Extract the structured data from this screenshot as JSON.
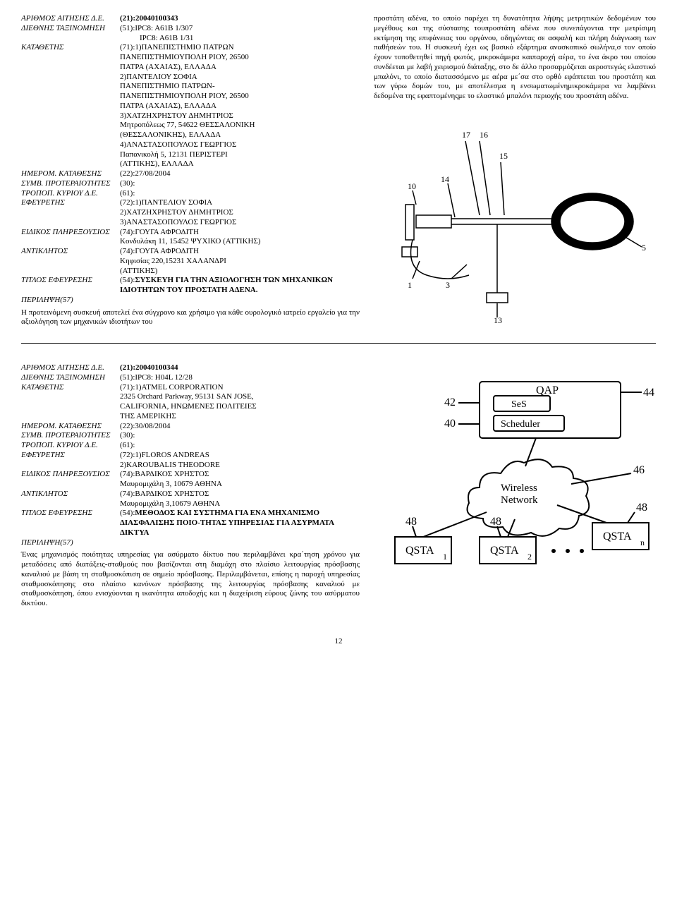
{
  "records": [
    {
      "fields": [
        {
          "label": "ΑΡΙΘΜΟΣ ΑΙΤΗΣΗΣ Δ.Ε.",
          "value_bold": "(21):20040100343"
        },
        {
          "label": "ΔΙΕΘΝΗΣ ΤΑΞΙΝΟΜΗΣΗ",
          "lines": [
            "(51):IPC8: A61B   1/307",
            "IPC8: A61B   1/31"
          ],
          "indent_from": 1
        },
        {
          "label": "ΚΑΤΑΘΕΤΗΣ",
          "lines": [
            "(71):1)ΠΑΝΕΠΙΣΤΗΜΙΟ ΠΑΤΡΩΝ",
            "ΠΑΝΕΠΙΣΤΗΜΙΟΥΠΟΛΗ ΡΙΟΥ, 26500",
            "ΠΑΤΡΑ (ΑΧΑΙΑΣ), ΕΛΛΑΔΑ",
            "2)ΠΑΝΤΕΛΙΟΥ ΣΟΦΙΑ",
            "ΠΑΝΕΠΙΣΤΗΜΙΟ ΠΑΤΡΩΝ-",
            "ΠΑΝΕΠΙΣΤΗΜΙΟΥΠΟΛΗ ΡΙΟΥ, 26500",
            "ΠΑΤΡΑ (ΑΧΑΙΑΣ), ΕΛΛΑΔΑ",
            "3)ΧΑΤΖΗΧΡΗΣΤΟΥ ΔΗΜΗΤΡΙΟΣ",
            "Μητροπόλεως 77, 54622 ΘΕΣΣΑΛΟΝΙΚΗ",
            "(ΘΕΣΣΑΛΟΝΙΚΗΣ), ΕΛΛΑΔΑ",
            "4)ΑΝΑΣΤΑΣΟΠΟΥΛΟΣ ΓΕΩΡΓΙΟΣ",
            "Παπανικολή 5, 12131 ΠΕΡΙΣΤΕΡΙ",
            "(ΑΤΤΙΚΗΣ), ΕΛΛΑΔΑ"
          ]
        },
        {
          "label": "ΗΜΕΡΟΜ. ΚΑΤΑΘΕΣΗΣ",
          "lines": [
            "(22):27/08/2004"
          ]
        },
        {
          "label": "ΣΥΜΒ. ΠΡΟΤΕΡΑΙΟΤΗΤΕΣ",
          "lines": [
            "(30):"
          ]
        },
        {
          "label": "ΤΡΟΠΟΠ. ΚΥΡΙΟΥ Δ.Ε.",
          "lines": [
            "(61):"
          ]
        },
        {
          "label": "ΕΦΕΥΡΕΤΗΣ",
          "lines": [
            "(72):1)ΠΑΝΤΕΛΙΟΥ ΣΟΦΙΑ",
            "2)ΧΑΤΖΗΧΡΗΣΤΟΥ ΔΗΜΗΤΡΙΟΣ",
            "3)ΑΝΑΣΤΑΣΟΠΟΥΛΟΣ ΓΕΩΡΓΙΟΣ"
          ]
        },
        {
          "label": "ΕΙΔΙΚΟΣ ΠΛΗΡΕΞΟΥΣΙΟΣ",
          "lines": [
            "(74):ΓΟΥΓΑ ΑΦΡΟΔΙΤΗ",
            "Κονδυλάκη 11, 15452 ΨΥΧΙΚΟ (ΑΤΤΙΚΗΣ)"
          ]
        },
        {
          "label": "ΑΝΤΙΚΛΗΤΟΣ",
          "lines": [
            "(74):ΓΟΥΓΑ ΑΦΡΟΔΙΤΗ",
            "Κηφισίας 220,15231 ΧΑΛΑΝΔΡΙ",
            "(ΑΤΤΙΚΗΣ)"
          ]
        },
        {
          "label": "ΤΙΤΛΟΣ ΕΦΕΥΡΕΣΗΣ",
          "title_prefix": "(54):",
          "title_bold": "ΣΥΣΚΕΥΗ ΓΙΑ ΤΗΝ ΑΞΙΟΛΟΓΗΣΗ ΤΩΝ ΜΗΧΑΝΙΚΩΝ ΙΔΙΟΤΗΤΩΝ ΤΟΥ ΠΡΟΣΤΑΤΗ ΑΔΕΝΑ."
        }
      ],
      "abstract_label": "ΠΕΡΙΛΗΨΗ(57)",
      "abstract_left": "Η προτεινόμενη συσκευή αποτελεί ένα σύγχρονο και χρήσιμο για κάθε ουρολογικό ιατρείο εργαλείο  για την αξιολόγηση των μηχανικών ιδιοτήτων του",
      "abstract_right": "προστάτη αδένα, το οποίο παρέχει τη δυνατότητα λήψης μετρητικών δεδομένων του μεγέθους και της σύστασης τουπροστάτη αδένα που συνεπάγονται την μετρίσιμη εκτίμηση της επιφάνειας του οργάνου, οδηγώντας σε ασφαλή και πλήρη διάγνωση των παθήσεών του. Η συσκευή έχει ως βασικό εξάρτημα ανασκοπικό σωλήνα,σ τον οποίο έχουν τοποθετηθεί πηγή φωτός, μικροκάμερα καιπαροχή αέρα, το ένα άκρο του οποίου συνδέεται με λαβή χειρισμού διάταξης, στο δε άλλο προσαρμόζεται αεροστεγώς ελαστικό μπαλόνι, το οποίο διατασσόμενο με αέρα με΄σα στο ορθό εφάπτεται του προστάτη και των γύρω δομών του, με αποτέλεσμα η ενσωματωμένημικροκάμερα να λαμβάνει δεδομένα της εφαπτομένηςμε το ελαστικό μπαλόνι περιοχής του προστάτη αδένα.",
      "figure": "probe"
    },
    {
      "fields": [
        {
          "label": "ΑΡΙΘΜΟΣ ΑΙΤΗΣΗΣ Δ.Ε.",
          "value_bold": "(21):20040100344"
        },
        {
          "label": "ΔΙΕΘΝΗΣ ΤΑΞΙΝΟΜΗΣΗ",
          "lines": [
            "(51):IPC8: H04L  12/28"
          ]
        },
        {
          "label": "ΚΑΤΑΘΕΤΗΣ",
          "lines": [
            "(71):1)ATMEL CORPORATION",
            "2325 Orchard Parkway, 95131 SAN JOSE,",
            "CALIFORNIA, ΗΝΩΜΕΝΕΣ ΠΟΛΙΤΕΙΕΣ",
            "ΤΗΣ ΑΜΕΡΙΚΗΣ"
          ]
        },
        {
          "label": "ΗΜΕΡΟΜ. ΚΑΤΑΘΕΣΗΣ",
          "lines": [
            "(22):30/08/2004"
          ]
        },
        {
          "label": "ΣΥΜΒ. ΠΡΟΤΕΡΑΙΟΤΗΤΕΣ",
          "lines": [
            "(30):"
          ]
        },
        {
          "label": "ΤΡΟΠΟΠ. ΚΥΡΙΟΥ Δ.Ε.",
          "lines": [
            "(61):"
          ]
        },
        {
          "label": "ΕΦΕΥΡΕΤΗΣ",
          "lines": [
            "(72):1)FLOROS ANDREAS",
            "2)KAROUBALIS THEODORE"
          ]
        },
        {
          "label": "ΕΙΔΙΚΟΣ ΠΛΗΡΕΞΟΥΣΙΟΣ",
          "lines": [
            "(74):ΒΑΡΔΙΚΟΣ ΧΡΗΣΤΟΣ",
            "Μαυρομιχάλη 3, 10679 ΑΘΗΝΑ"
          ]
        },
        {
          "label": "ΑΝΤΙΚΛΗΤΟΣ",
          "lines": [
            "(74):ΒΑΡΔΙΚΟΣ ΧΡΗΣΤΟΣ",
            "Μαυρομιχάλη 3,10679 ΑΘΗΝΑ"
          ]
        },
        {
          "label": "ΤΙΤΛΟΣ ΕΦΕΥΡΕΣΗΣ",
          "title_prefix": "(54):",
          "title_bold": "ΜΕΘΟΔΟΣ ΚΑΙ ΣΥΣΤΗΜΑ ΓΙΑ ΕΝΑ ΜΗΧΑΝΙΣΜΟ ΔΙΑΣΦΑΛΙΣΗΣ ΠΟΙΟ-ΤΗΤΑΣ ΥΠΗΡΕΣΙΑΣ ΓΙΑ ΑΣΥΡΜΑΤΑ ΔΙΚΤΥΑ"
        }
      ],
      "abstract_label": "ΠΕΡΙΛΗΨΗ(57)",
      "abstract_left": "Ένας μηχανισμός ποιότητας υπηρεσίας για ασύρματο δίκτυο που περιλαμβάνει κρα΄τηση χρόνου για μεταδόσεις από διατάξεις-σταθμούς που βασίζονται στη διαμάχη στο πλαίσιο λειτουργίας πρόσβασης καναλιού με βάση τη σταθμοσκόπιση σε σημείο πρόσβασης. Περιλαμβάνεται, επίσης η παροχή υπηρεσίας σταθμοσκόπησης στο πλαίσιο κανόνων πρόσβασης της λειτουργίας πρόσβασης καναλιού με σταθμοσκόπηση, όπου ενισχύονται η ικανότητα αποδοχής και η διαχείριση εύρους ζώνης του ασύρματου δικτύου.",
      "abstract_right": "",
      "figure": "network"
    }
  ],
  "figure_labels": {
    "probe": {
      "nums": [
        "17",
        "16",
        "15",
        "14",
        "10",
        "5",
        "3",
        "1",
        "13"
      ]
    },
    "network": {
      "qap": "QAP",
      "ses": "SeS",
      "sched": "Scheduler",
      "wn": "Wireless\nNetwork",
      "qsta1": "QSTA",
      "qsta2": "QSTA",
      "qstan": "QSTA",
      "sub1": "1",
      "sub2": "2",
      "subn": "n",
      "n42": "42",
      "n40": "40",
      "n44": "44",
      "n46": "46",
      "n48a": "48",
      "n48b": "48",
      "n48c": "48"
    }
  },
  "pagenum": "12"
}
